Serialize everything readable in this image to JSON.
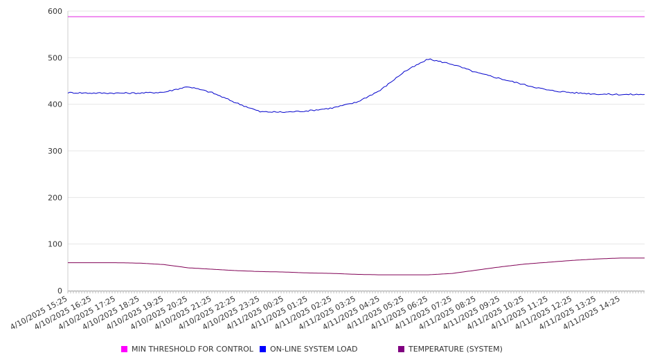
{
  "chart_data": {
    "type": "line",
    "title": "",
    "xlabel": "",
    "ylabel": "",
    "ylim": [
      0,
      600
    ],
    "yticks": [
      "0",
      "100",
      "200",
      "300",
      "400",
      "500",
      "600"
    ],
    "grid": true,
    "legend_position": "bottom",
    "x": [
      "4/10/2025 15:25",
      "4/10/2025 16:25",
      "4/10/2025 17:25",
      "4/10/2025 18:25",
      "4/10/2025 19:25",
      "4/10/2025 20:25",
      "4/10/2025 21:25",
      "4/10/2025 22:25",
      "4/10/2025 23:25",
      "4/11/2025 00:25",
      "4/11/2025 01:25",
      "4/11/2025 02:25",
      "4/11/2025 03:25",
      "4/11/2025 04:25",
      "4/11/2025 05:25",
      "4/11/2025 06:25",
      "4/11/2025 07:25",
      "4/11/2025 08:25",
      "4/11/2025 09:25",
      "4/11/2025 10:25",
      "4/11/2025 11:25",
      "4/11/2025 12:25",
      "4/11/2025 13:25",
      "4/11/2025 14:25"
    ],
    "series": [
      {
        "name": "MIN THRESHOLD FOR CONTROL",
        "color": "#e020e0",
        "legend_color": "#ff00ff",
        "values": [
          588,
          588,
          588,
          588,
          588,
          588,
          588,
          588,
          588,
          588,
          588,
          588,
          588,
          588,
          588,
          588,
          588,
          588,
          588,
          588,
          588,
          588,
          588,
          588
        ]
      },
      {
        "name": "ON-LINE SYSTEM LOAD",
        "color": "#0000cc",
        "legend_color": "#0000ff",
        "values": [
          425,
          424,
          424,
          424,
          426,
          438,
          425,
          403,
          384,
          383,
          386,
          392,
          404,
          430,
          470,
          497,
          486,
          468,
          455,
          442,
          430,
          425,
          422,
          421
        ]
      },
      {
        "name": "TEMPERATURE (SYSTEM)",
        "color": "#800055",
        "legend_color": "#800080",
        "values": [
          60,
          60,
          60,
          59,
          56,
          49,
          46,
          43,
          41,
          40,
          38,
          37,
          35,
          34,
          34,
          34,
          37,
          44,
          51,
          57,
          61,
          65,
          68,
          70
        ]
      }
    ]
  }
}
